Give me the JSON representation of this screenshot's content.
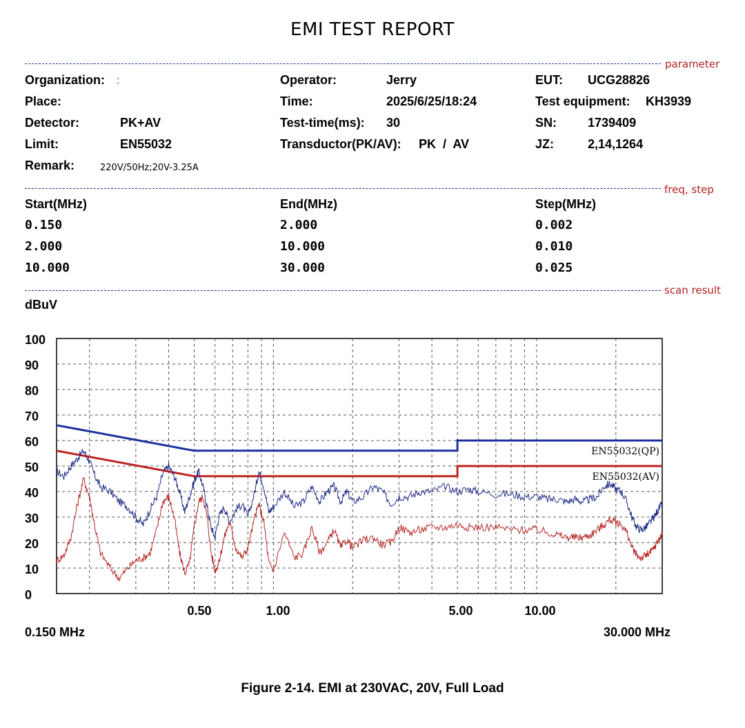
{
  "report": {
    "title": "EMI TEST REPORT",
    "sections": {
      "parameter": "parameter",
      "freq_step": "freq, step",
      "scan_result": "scan result"
    },
    "organization_label": "Organization:",
    "organization_value": ":",
    "place_label": "Place:",
    "detector_label": "Detector:",
    "detector_value": "PK+AV",
    "limit_label": "Limit:",
    "limit_value": "EN55032",
    "remark_label": "Remark:",
    "remark_value": "220V/50Hz;20V-3.25A",
    "operator_label": "Operator:",
    "operator_value": "Jerry",
    "time_label": "Time:",
    "time_value": "2025/6/25/18:24",
    "test_time_label": "Test-time(ms):",
    "test_time_value": "30",
    "transductor_label": "Transductor(PK/AV):",
    "transductor_value": "PK  /  AV",
    "eut_label": "EUT:",
    "eut_value": "UCG28826",
    "test_equipment_label": "Test equipment:",
    "test_equipment_value": "KH3939",
    "sn_label": "SN:",
    "sn_value": "1739409",
    "jz_label": "JZ:",
    "jz_value": "2,14,1264"
  },
  "freq_table": {
    "headers": [
      "Start(MHz)",
      "End(MHz)",
      "Step(MHz)"
    ],
    "rows": [
      [
        "0.150",
        "2.000",
        "0.002"
      ],
      [
        "2.000",
        "10.000",
        "0.010"
      ],
      [
        "10.000",
        "30.000",
        "0.025"
      ]
    ]
  },
  "chart_data": {
    "type": "line",
    "ylabel": "dBuV",
    "ylim": [
      0,
      100
    ],
    "yticks": [
      "100",
      "90",
      "80",
      "70",
      "60",
      "50",
      "40",
      "30",
      "20",
      "10",
      "0"
    ],
    "xscale": "log",
    "xlim": [
      0.15,
      30
    ],
    "xticks": [
      "0.50",
      "1.00",
      "5.00",
      "10.00"
    ],
    "xtick_values": [
      0.5,
      1,
      5,
      10
    ],
    "xmin_label": "0.150 MHz",
    "xmax_label": "30.000 MHz",
    "grid": true,
    "limit_lines": [
      {
        "name": "EN55032(QP)",
        "color": "#1c2fa0",
        "points": [
          [
            0.15,
            66
          ],
          [
            0.5,
            56
          ],
          [
            5,
            56
          ],
          [
            5,
            60
          ],
          [
            30,
            60
          ]
        ]
      },
      {
        "name": "EN55032(AV)",
        "color": "#c0201e",
        "points": [
          [
            0.15,
            56
          ],
          [
            0.5,
            46
          ],
          [
            5,
            46
          ],
          [
            5,
            50
          ],
          [
            30,
            50
          ]
        ]
      }
    ],
    "series": [
      {
        "color": "#1c2a86",
        "points": [
          [
            0.15,
            48
          ],
          [
            0.16,
            46
          ],
          [
            0.17,
            50
          ],
          [
            0.18,
            53
          ],
          [
            0.19,
            56
          ],
          [
            0.2,
            52
          ],
          [
            0.21,
            46
          ],
          [
            0.22,
            42
          ],
          [
            0.24,
            40
          ],
          [
            0.26,
            36
          ],
          [
            0.28,
            34
          ],
          [
            0.3,
            30
          ],
          [
            0.32,
            27
          ],
          [
            0.34,
            33
          ],
          [
            0.36,
            38
          ],
          [
            0.38,
            47
          ],
          [
            0.4,
            50
          ],
          [
            0.42,
            46
          ],
          [
            0.44,
            40
          ],
          [
            0.46,
            32
          ],
          [
            0.48,
            38
          ],
          [
            0.5,
            44
          ],
          [
            0.52,
            48
          ],
          [
            0.54,
            42
          ],
          [
            0.56,
            34
          ],
          [
            0.58,
            26
          ],
          [
            0.6,
            22
          ],
          [
            0.62,
            30
          ],
          [
            0.65,
            34
          ],
          [
            0.68,
            28
          ],
          [
            0.72,
            33
          ],
          [
            0.76,
            35
          ],
          [
            0.8,
            30
          ],
          [
            0.85,
            40
          ],
          [
            0.88,
            48
          ],
          [
            0.92,
            42
          ],
          [
            0.96,
            32
          ],
          [
            1.0,
            34
          ],
          [
            1.1,
            40
          ],
          [
            1.2,
            34
          ],
          [
            1.3,
            36
          ],
          [
            1.4,
            42
          ],
          [
            1.5,
            36
          ],
          [
            1.6,
            40
          ],
          [
            1.7,
            42
          ],
          [
            1.8,
            36
          ],
          [
            1.9,
            40
          ],
          [
            2.0,
            36
          ],
          [
            2.2,
            38
          ],
          [
            2.4,
            42
          ],
          [
            2.6,
            40
          ],
          [
            2.8,
            35
          ],
          [
            3.0,
            38
          ],
          [
            3.3,
            38
          ],
          [
            3.6,
            40
          ],
          [
            4.0,
            40
          ],
          [
            4.5,
            42
          ],
          [
            5.0,
            40
          ],
          [
            5.5,
            41
          ],
          [
            6.0,
            40
          ],
          [
            7.0,
            39
          ],
          [
            8.0,
            39
          ],
          [
            9.0,
            38
          ],
          [
            10.0,
            38
          ],
          [
            11.0,
            37
          ],
          [
            12.0,
            37
          ],
          [
            13.0,
            36
          ],
          [
            14.0,
            37
          ],
          [
            15.0,
            36
          ],
          [
            16.0,
            37
          ],
          [
            17.0,
            38
          ],
          [
            18.0,
            42
          ],
          [
            19.0,
            43
          ],
          [
            20.0,
            41
          ],
          [
            21.0,
            40
          ],
          [
            22.0,
            36
          ],
          [
            23.0,
            30
          ],
          [
            24.0,
            26
          ],
          [
            25.0,
            25
          ],
          [
            26.0,
            26
          ],
          [
            27.0,
            28
          ],
          [
            28.0,
            30
          ],
          [
            29.0,
            33
          ],
          [
            30.0,
            35
          ]
        ]
      },
      {
        "color": "#b52421",
        "points": [
          [
            0.15,
            13
          ],
          [
            0.16,
            15
          ],
          [
            0.17,
            22
          ],
          [
            0.18,
            35
          ],
          [
            0.19,
            45
          ],
          [
            0.2,
            38
          ],
          [
            0.21,
            26
          ],
          [
            0.22,
            16
          ],
          [
            0.24,
            10
          ],
          [
            0.26,
            6
          ],
          [
            0.28,
            10
          ],
          [
            0.3,
            13
          ],
          [
            0.32,
            14
          ],
          [
            0.34,
            16
          ],
          [
            0.36,
            25
          ],
          [
            0.38,
            36
          ],
          [
            0.4,
            38
          ],
          [
            0.42,
            30
          ],
          [
            0.44,
            16
          ],
          [
            0.46,
            8
          ],
          [
            0.48,
            12
          ],
          [
            0.5,
            26
          ],
          [
            0.52,
            36
          ],
          [
            0.54,
            38
          ],
          [
            0.56,
            30
          ],
          [
            0.58,
            16
          ],
          [
            0.6,
            9
          ],
          [
            0.62,
            12
          ],
          [
            0.65,
            22
          ],
          [
            0.68,
            28
          ],
          [
            0.72,
            18
          ],
          [
            0.76,
            14
          ],
          [
            0.8,
            18
          ],
          [
            0.85,
            30
          ],
          [
            0.88,
            35
          ],
          [
            0.92,
            28
          ],
          [
            0.96,
            12
          ],
          [
            1.0,
            9
          ],
          [
            1.1,
            24
          ],
          [
            1.2,
            14
          ],
          [
            1.3,
            16
          ],
          [
            1.4,
            26
          ],
          [
            1.5,
            16
          ],
          [
            1.6,
            20
          ],
          [
            1.7,
            25
          ],
          [
            1.8,
            18
          ],
          [
            1.9,
            21
          ],
          [
            2.0,
            18
          ],
          [
            2.2,
            21
          ],
          [
            2.4,
            22
          ],
          [
            2.6,
            19
          ],
          [
            2.8,
            20
          ],
          [
            3.0,
            26
          ],
          [
            3.3,
            24
          ],
          [
            3.6,
            25
          ],
          [
            4.0,
            26
          ],
          [
            4.5,
            26
          ],
          [
            5.0,
            27
          ],
          [
            5.5,
            26
          ],
          [
            6.0,
            26
          ],
          [
            7.0,
            26
          ],
          [
            8.0,
            25
          ],
          [
            9.0,
            25
          ],
          [
            10.0,
            25
          ],
          [
            11.0,
            24
          ],
          [
            12.0,
            23
          ],
          [
            13.0,
            22
          ],
          [
            14.0,
            22
          ],
          [
            15.0,
            22
          ],
          [
            16.0,
            23
          ],
          [
            17.0,
            25
          ],
          [
            18.0,
            27
          ],
          [
            19.0,
            29
          ],
          [
            20.0,
            28
          ],
          [
            21.0,
            27
          ],
          [
            22.0,
            24
          ],
          [
            23.0,
            18
          ],
          [
            24.0,
            15
          ],
          [
            25.0,
            14
          ],
          [
            26.0,
            15
          ],
          [
            27.0,
            16
          ],
          [
            28.0,
            18
          ],
          [
            29.0,
            21
          ],
          [
            30.0,
            23
          ]
        ]
      }
    ]
  },
  "caption": "Figure 2-14. EMI at 230VAC, 20V, Full Load"
}
